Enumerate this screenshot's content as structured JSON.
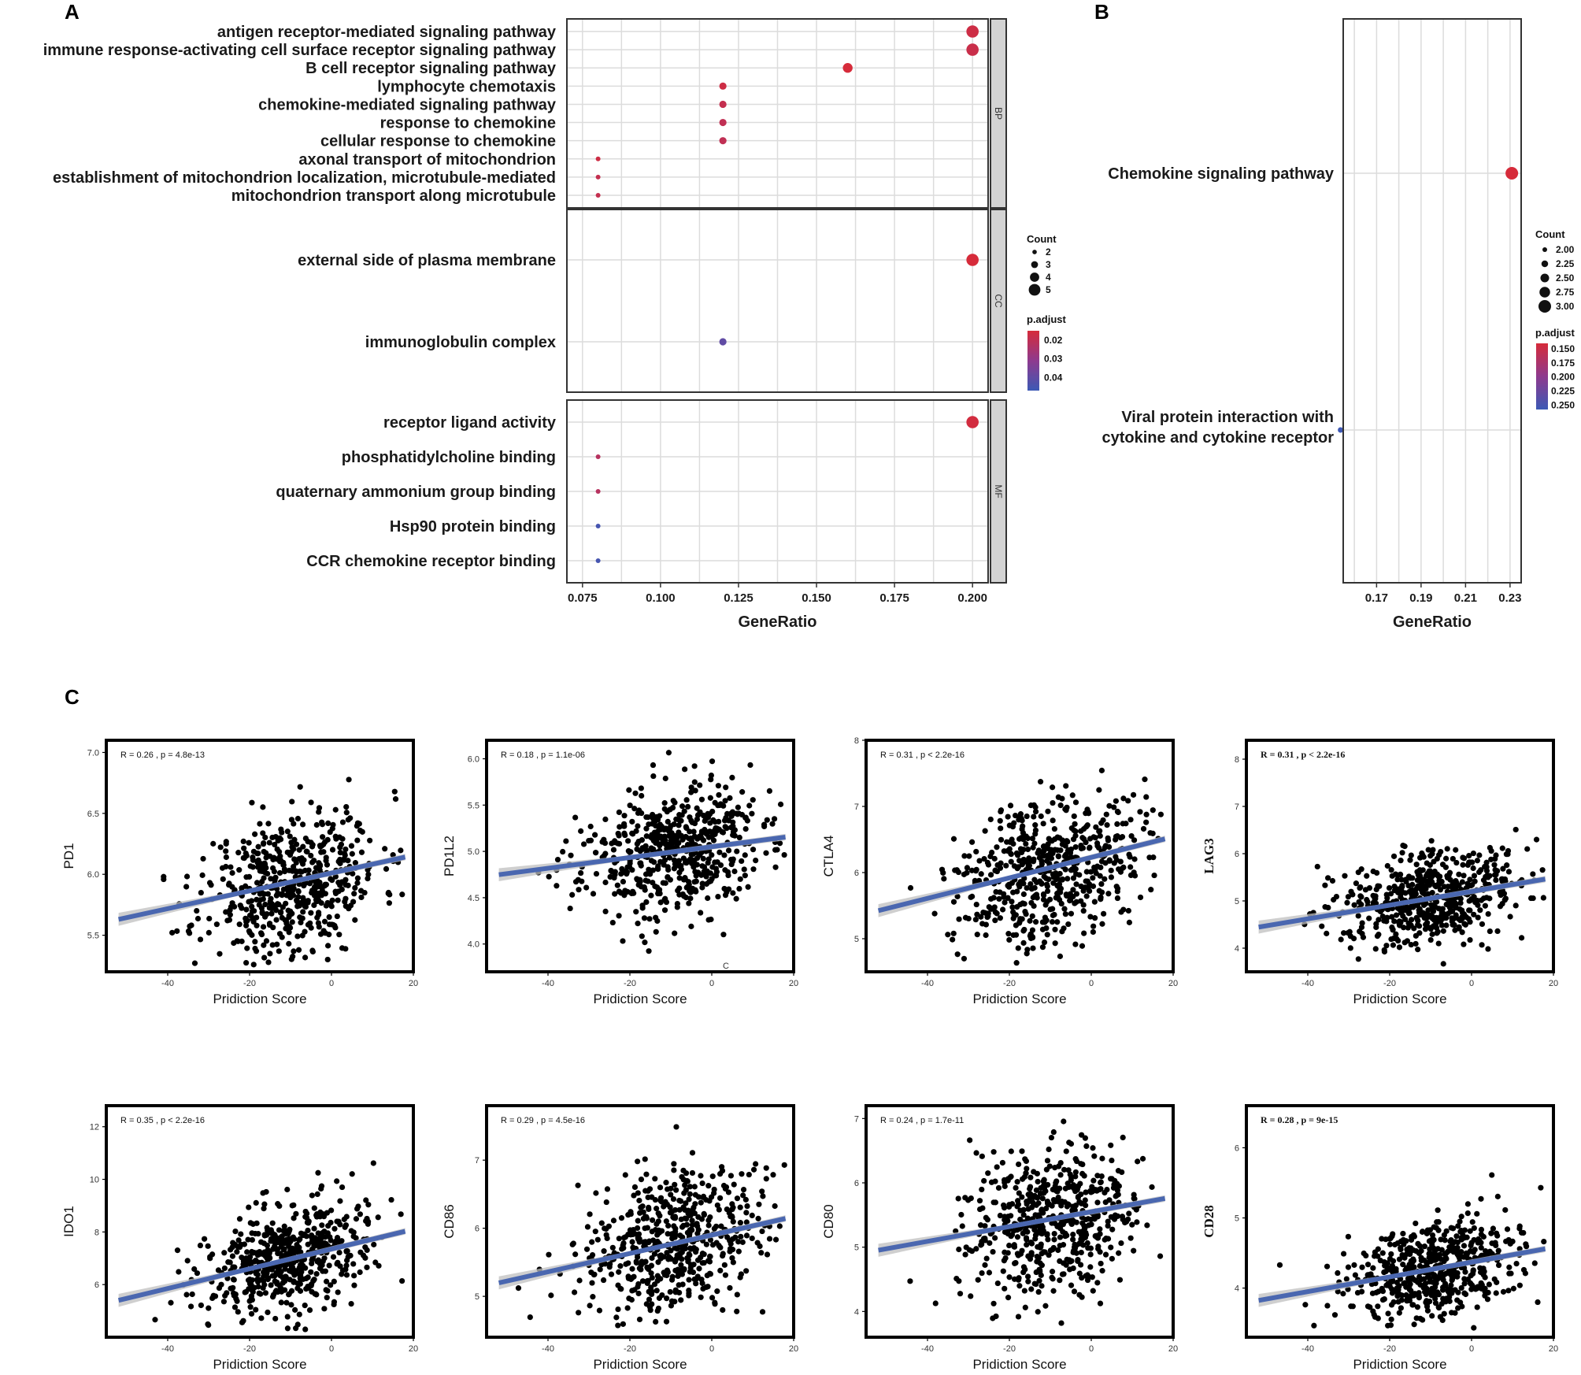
{
  "figure": {
    "label_a": "A",
    "label_b": "B",
    "label_c": "C"
  },
  "chart_data": [
    {
      "id": "A",
      "type": "scatter",
      "subtype": "dot-plot",
      "xlabel": "GeneRatio",
      "xlim": [
        0.07,
        0.205
      ],
      "xticks": [
        0.075,
        0.1,
        0.125,
        0.15,
        0.175,
        0.2
      ],
      "xtick_labels": [
        "0.075",
        "0.100",
        "0.125",
        "0.150",
        "0.175",
        "0.200"
      ],
      "facets": [
        {
          "strip": "BP",
          "terms": [
            {
              "term": "antigen receptor-mediated signaling pathway",
              "ratio": 0.2,
              "count": 5,
              "padj": 0.017
            },
            {
              "term": "immune response-activating cell surface receptor signaling pathway",
              "ratio": 0.2,
              "count": 5,
              "padj": 0.018
            },
            {
              "term": "B cell receptor signaling pathway",
              "ratio": 0.16,
              "count": 4,
              "padj": 0.015
            },
            {
              "term": "lymphocyte chemotaxis",
              "ratio": 0.12,
              "count": 3,
              "padj": 0.017
            },
            {
              "term": "chemokine-mediated signaling pathway",
              "ratio": 0.12,
              "count": 3,
              "padj": 0.019
            },
            {
              "term": "response to chemokine",
              "ratio": 0.12,
              "count": 3,
              "padj": 0.02
            },
            {
              "term": "cellular response to chemokine",
              "ratio": 0.12,
              "count": 3,
              "padj": 0.02
            },
            {
              "term": "axonal transport of mitochondrion",
              "ratio": 0.08,
              "count": 2,
              "padj": 0.017
            },
            {
              "term": "establishment of mitochondrion localization, microtubule-mediated",
              "ratio": 0.08,
              "count": 2,
              "padj": 0.019
            },
            {
              "term": "mitochondrion transport along microtubule",
              "ratio": 0.08,
              "count": 2,
              "padj": 0.019
            }
          ]
        },
        {
          "strip": "CC",
          "terms": [
            {
              "term": "external side of plasma membrane",
              "ratio": 0.2,
              "count": 5,
              "padj": 0.015
            },
            {
              "term": "immunoglobulin complex",
              "ratio": 0.12,
              "count": 3,
              "padj": 0.04
            }
          ]
        },
        {
          "strip": "MF",
          "terms": [
            {
              "term": "receptor ligand activity",
              "ratio": 0.2,
              "count": 5,
              "padj": 0.016
            },
            {
              "term": "phosphatidylcholine binding",
              "ratio": 0.08,
              "count": 2,
              "padj": 0.022
            },
            {
              "term": "quaternary ammonium group binding",
              "ratio": 0.08,
              "count": 2,
              "padj": 0.022
            },
            {
              "term": "Hsp90 protein binding",
              "ratio": 0.08,
              "count": 2,
              "padj": 0.045
            },
            {
              "term": "CCR chemokine receptor binding",
              "ratio": 0.08,
              "count": 2,
              "padj": 0.045
            }
          ]
        }
      ],
      "legend_count": {
        "title": "Count",
        "values": [
          2,
          3,
          4,
          5
        ],
        "labels": [
          "2",
          "3",
          "4",
          "5"
        ]
      },
      "legend_padj": {
        "title": "p.adjust",
        "range": [
          0.015,
          0.047
        ],
        "ticks": [
          0.02,
          0.03,
          0.04
        ],
        "labels": [
          "0.02",
          "0.03",
          "0.04"
        ]
      }
    },
    {
      "id": "B",
      "type": "scatter",
      "subtype": "dot-plot",
      "xlabel": "GeneRatio",
      "xlim": [
        0.155,
        0.235
      ],
      "xticks": [
        0.17,
        0.19,
        0.21,
        0.23
      ],
      "xtick_labels": [
        "0.17",
        "0.19",
        "0.21",
        "0.23"
      ],
      "terms": [
        {
          "term_lines": [
            "Chemokine signaling pathway"
          ],
          "ratio": 0.2308,
          "count": 3,
          "padj": 0.14
        },
        {
          "term_lines": [
            "Viral protein interaction with",
            "cytokine and cytokine receptor"
          ],
          "ratio": 0.1538,
          "count": 2,
          "padj": 0.256
        }
      ],
      "legend_count": {
        "title": "Count",
        "values": [
          2.0,
          2.25,
          2.5,
          2.75,
          3.0
        ],
        "labels": [
          "2.00",
          "2.25",
          "2.50",
          "2.75",
          "3.00"
        ]
      },
      "legend_padj": {
        "title": "p.adjust",
        "range": [
          0.14,
          0.258
        ],
        "ticks": [
          0.15,
          0.175,
          0.2,
          0.225,
          0.25
        ],
        "labels": [
          "0.150",
          "0.175",
          "0.200",
          "0.225",
          "0.250"
        ]
      }
    },
    {
      "id": "C",
      "type": "scatter",
      "subtype": "correlation-grid",
      "panels": [
        {
          "ylabel": "PD1",
          "stat": "R = 0.26 , p = 4.8e-13",
          "xlabel": "Pridiction Score",
          "xlim": [
            -55,
            20
          ],
          "ylim": [
            5.2,
            7.1
          ],
          "yticks": [
            5.5,
            6.0,
            6.5,
            7.0
          ],
          "ytick_labels": [
            "5.5",
            "6.0",
            "6.5",
            "7.0"
          ],
          "slope": 0.0073,
          "intercept": 6.01,
          "ymean": 5.95,
          "sd": 0.28,
          "seed": 11,
          "serif": false
        },
        {
          "ylabel": "PD1L2",
          "stat": "R = 0.18 , p = 1.1e-06",
          "xlabel": "Pridiction Score",
          "xlim": [
            -55,
            20
          ],
          "ylim": [
            3.7,
            6.2
          ],
          "yticks": [
            4.0,
            4.5,
            5.0,
            5.5,
            6.0
          ],
          "ytick_labels": [
            "4.0",
            "4.5",
            "5.0",
            "5.5",
            "6.0"
          ],
          "slope": 0.0058,
          "intercept": 5.05,
          "ymean": 4.95,
          "sd": 0.35,
          "seed": 23,
          "serif": false
        },
        {
          "ylabel": "CTLA4",
          "stat": "R = 0.31 , p < 2.2e-16",
          "xlabel": "Pridiction Score",
          "xlim": [
            -55,
            20
          ],
          "ylim": [
            4.5,
            8.0
          ],
          "yticks": [
            5,
            6,
            7,
            8
          ],
          "ytick_labels": [
            "5",
            "6",
            "7",
            "8"
          ],
          "slope": 0.0155,
          "intercept": 6.23,
          "ymean": 6.0,
          "sd": 0.55,
          "seed": 37,
          "serif": false
        },
        {
          "ylabel": "LAG3",
          "stat": "R = 0.31 , p < 2.2e-16",
          "xlabel": "Pridiction Score",
          "xlim": [
            -55,
            20
          ],
          "ylim": [
            3.5,
            8.4
          ],
          "yticks": [
            4,
            5,
            6,
            7,
            8
          ],
          "ytick_labels": [
            "4",
            "5",
            "6",
            "7",
            "8"
          ],
          "slope": 0.0145,
          "intercept": 5.2,
          "ymean": 5.0,
          "sd": 0.5,
          "seed": 41,
          "serif": true
        },
        {
          "ylabel": "IDO1",
          "stat": "R = 0.35 , p < 2.2e-16",
          "xlabel": "Pridiction Score",
          "xlim": [
            -55,
            20
          ],
          "ylim": [
            4.0,
            12.8
          ],
          "yticks": [
            6,
            8,
            10,
            12
          ],
          "ytick_labels": [
            "6",
            "8",
            "10",
            "12"
          ],
          "slope": 0.0375,
          "intercept": 7.35,
          "ymean": 7.0,
          "sd": 1.1,
          "seed": 53,
          "serif": false
        },
        {
          "ylabel": "CD86",
          "stat": "R = 0.29 , p = 4.5e-16",
          "xlabel": "Pridiction Score",
          "xlim": [
            -55,
            20
          ],
          "ylim": [
            4.4,
            7.8
          ],
          "yticks": [
            5,
            6,
            7
          ],
          "ytick_labels": [
            "5",
            "6",
            "7"
          ],
          "slope": 0.0135,
          "intercept": 5.9,
          "ymean": 5.75,
          "sd": 0.5,
          "seed": 67,
          "serif": false
        },
        {
          "ylabel": "CD80",
          "stat": "R = 0.24 , p = 1.7e-11",
          "xlabel": "Pridiction Score",
          "xlim": [
            -55,
            20
          ],
          "ylim": [
            3.6,
            7.2
          ],
          "yticks": [
            4,
            5,
            6,
            7
          ],
          "ytick_labels": [
            "4",
            "5",
            "6",
            "7"
          ],
          "slope": 0.0115,
          "intercept": 5.55,
          "ymean": 5.4,
          "sd": 0.55,
          "seed": 79,
          "serif": false
        },
        {
          "ylabel": "CD28",
          "stat": "R = 0.28 , p = 9e-15",
          "xlabel": "Pridiction Score",
          "xlim": [
            -55,
            20
          ],
          "ylim": [
            3.3,
            6.6
          ],
          "yticks": [
            4,
            5,
            6
          ],
          "ytick_labels": [
            "4",
            "5",
            "6"
          ],
          "slope": 0.0105,
          "intercept": 4.37,
          "ymean": 4.25,
          "sd": 0.35,
          "seed": 83,
          "serif": true
        }
      ],
      "xticks": [
        -40,
        -20,
        0,
        20
      ],
      "xtick_labels": [
        "-40",
        "-20",
        "0",
        "20"
      ],
      "stray_mark": "C"
    }
  ],
  "colors": {
    "high": "#d62b3a",
    "mid": "#8e3a8e",
    "low": "#3c59b5",
    "grid": "#dcdcdc",
    "strip": "#d3d3d3",
    "line": "#4a67b0",
    "band": "#bfbfbf"
  }
}
